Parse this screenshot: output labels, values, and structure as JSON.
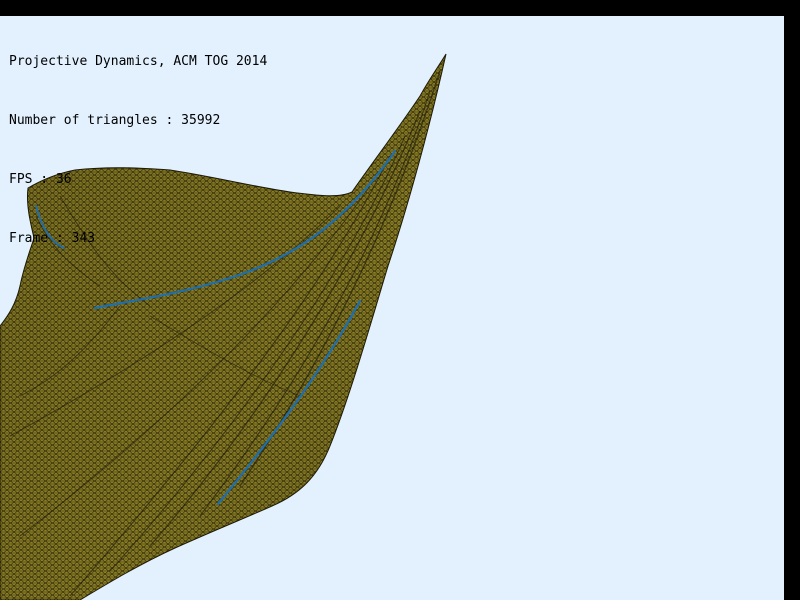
{
  "hud": {
    "title": "Projective Dynamics, ACM TOG 2014",
    "triangles_line": "Number of triangles : 35992",
    "fps_line": "FPS : 36",
    "frame_line": "Frame : 343"
  },
  "colors": {
    "viewport_background": "#e3f1fe",
    "window_frame": "#000000",
    "mesh_fill": "#8e8226",
    "mesh_wire": "#1e1a05",
    "pin_stripe": "#1d6fb0"
  },
  "scene": {
    "mesh": "cloth-mesh",
    "triangle_count": 35992
  }
}
